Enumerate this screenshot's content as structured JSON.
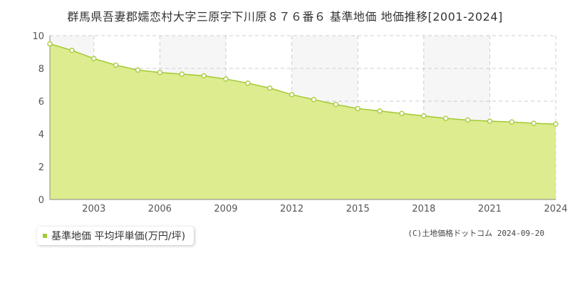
{
  "chart_data": {
    "type": "area",
    "title": "群馬県吾妻郡嬬恋村大字三原字下川原８７６番６ 基準地価 地価推移[2001-2024]",
    "x": [
      2001,
      2002,
      2003,
      2004,
      2005,
      2006,
      2007,
      2008,
      2009,
      2010,
      2011,
      2012,
      2013,
      2014,
      2015,
      2016,
      2017,
      2018,
      2019,
      2020,
      2021,
      2022,
      2023,
      2024
    ],
    "series": [
      {
        "name": "基準地価 平均坪単価(万円/坪)",
        "values": [
          9.5,
          9.1,
          8.6,
          8.2,
          7.9,
          7.75,
          7.65,
          7.55,
          7.35,
          7.1,
          6.8,
          6.4,
          6.1,
          5.8,
          5.55,
          5.4,
          5.25,
          5.1,
          4.95,
          4.85,
          4.78,
          4.73,
          4.65,
          4.6
        ]
      }
    ],
    "xticks": [
      "2003",
      "2006",
      "2009",
      "2012",
      "2015",
      "2018",
      "2021",
      "2024"
    ],
    "yticks": [
      "0",
      "2",
      "4",
      "6",
      "8",
      "10"
    ],
    "xlim": [
      2001,
      2024
    ],
    "ylim": [
      0,
      10
    ],
    "grid": true,
    "legend": "bottom-left",
    "colors": {
      "fill": "#dcec8e",
      "line": "#a3c932",
      "grid": "#cccccc"
    }
  },
  "copyright": "(C)土地価格ドットコム 2024-09-20"
}
